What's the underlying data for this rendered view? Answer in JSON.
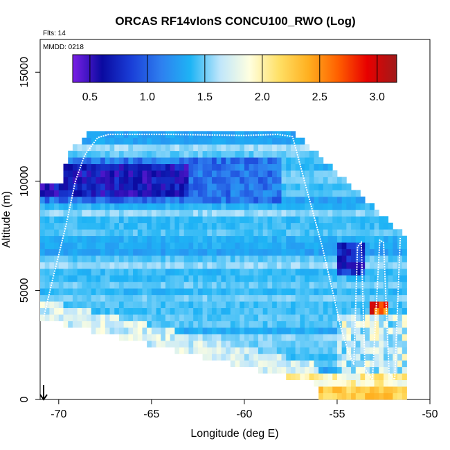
{
  "chart_data": {
    "type": "heatmap",
    "title": "ORCAS RF14vlonS CONCU100_RWO (Log)",
    "xlabel": "Longitude (deg E)",
    "ylabel": "Altitude (m)",
    "xlim": [
      -71,
      -50
    ],
    "ylim": [
      0,
      16500
    ],
    "x_ticks": [
      -70,
      -65,
      -60,
      -55,
      -50
    ],
    "y_ticks": [
      0,
      5000,
      10000,
      15000
    ],
    "note_flts": "Flts: 14",
    "note_mmdd": "MMDD: 0218",
    "colorbar": {
      "range": [
        0.35,
        3.17
      ],
      "ticks": [
        0.5,
        1.0,
        1.5,
        2.0,
        2.5,
        3.0
      ],
      "tick_labels": [
        "0.5",
        "1.0",
        "1.5",
        "2.0",
        "2.5",
        "3.0"
      ],
      "colors": [
        "#7a1fe6",
        "#0a0aa0",
        "#1a3fd8",
        "#2e7fef",
        "#1eb4f5",
        "#bfe6fb",
        "#ffffe0",
        "#ffe066",
        "#ffb020",
        "#ff6000",
        "#e80000",
        "#a01a1a"
      ]
    },
    "grid": false,
    "longitude_bin_deg": 0.25,
    "altitude_bin_m": 300
  }
}
